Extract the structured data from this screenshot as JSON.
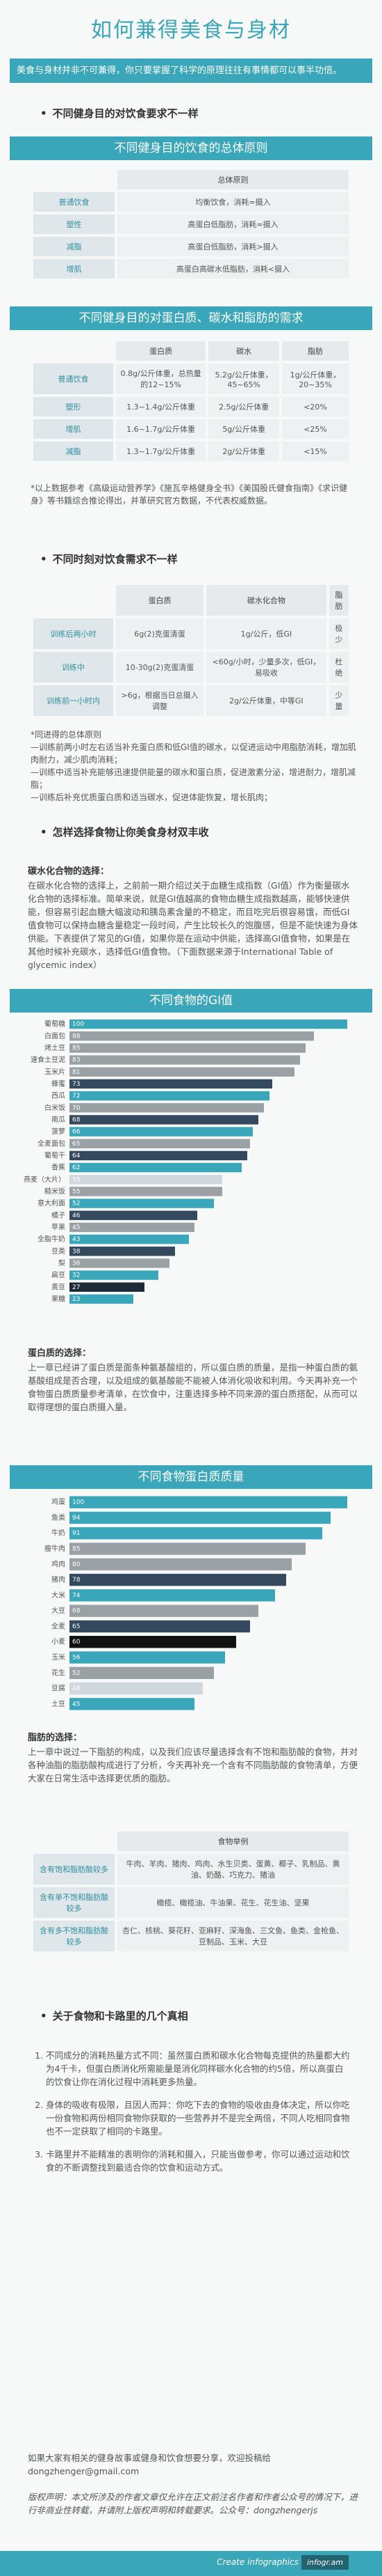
{
  "header": {
    "title": "如何兼得美食与身材",
    "intro": "美食与身材并非不可兼得，你只要掌握了科学的原理往往有事情都可以事半功倍。"
  },
  "headings": [
    "不同健身目的对饮食要求不一样",
    "不同时刻对饮食需求不一样",
    "怎样选择食物让你美食身材双丰收",
    "关于食物和卡路里的几个真相"
  ],
  "banners": [
    "不同健身目的饮食的总体原则",
    "不同健身目的对蛋白质、碳水和脂肪的需求"
  ],
  "tables": {
    "t1": {
      "header": [
        "总体原则"
      ],
      "rows": [
        [
          "普通饮食",
          "均衡饮食，消耗=摄入"
        ],
        [
          "塑性",
          "高蛋白低脂肪，消耗≈摄入"
        ],
        [
          "减脂",
          "高蛋白低脂肪，消耗>摄入"
        ],
        [
          "增肌",
          "高蛋白高碳水低脂肪，消耗<摄入"
        ]
      ]
    },
    "t2": {
      "header": [
        "蛋白质",
        "碳水",
        "脂肪"
      ],
      "rows": [
        [
          "普通饮食",
          "0.8g/公斤体重，总热量的12~15%",
          "5.2g/公斤体重，45~65%",
          "1g/公斤体重，20~35%"
        ],
        [
          "塑形",
          "1.3~1.4g/公斤体重",
          "2.5g/公斤体重",
          "<20%"
        ],
        [
          "增肌",
          "1.6~1.7g/公斤体重",
          "5g/公斤体重",
          "<25%"
        ],
        [
          "减脂",
          "1.3~1.7g/公斤体重",
          "2g/公斤体重",
          "<15%"
        ]
      ]
    },
    "t3": {
      "header": [
        "蛋白质",
        "碳水化合物",
        "脂肪"
      ],
      "rows": [
        [
          "训练后两小时",
          "6g(2)克蛋清蛋",
          "1g/公斤，低GI",
          "极少"
        ],
        [
          "训练中",
          "10-30g(2)克蛋清蛋",
          "<60g/小时，少量多次，低GI，易吸收",
          "杜绝"
        ],
        [
          "训练前一小时内",
          ">6g，根据当日总摄入调整",
          "2g/公斤体重，中等GI",
          "少量"
        ]
      ]
    },
    "t4": {
      "header": [
        "食物举例"
      ],
      "rows": [
        [
          "含有饱和脂肪酸较多",
          "牛肉、羊肉、猪肉、鸡肉、水生贝类、蛋黄、椰子、乳制品、黄油、奶酪、巧克力、猪油"
        ],
        [
          "含有单不饱和脂肪酸较多",
          "橄榄、橄榄油、牛油果、花生、花生油、坚果"
        ],
        [
          "含有多不饱和脂肪酸较多",
          "杏仁、核桃、葵花籽、亚麻籽、深海鱼、三文鱼、鱼类、金枪鱼、豆制品、玉米、大豆"
        ]
      ]
    }
  },
  "notes": {
    "n1": "*以上数据参考《高级运动营养学》《施瓦辛格健身全书》《美国股氏健食指南》《求识健身》等书籍综合推论得出，并革研究官方数据，不代表权威数据。",
    "n2": [
      "*同进得的总体原则",
      "—训练前两小时左右适当补充蛋白质和低GI值的碳水，以促进运动中用脂肪消耗，增加肌肉耐力，减少肌肉消耗；",
      "—训练中适当补充能够迅速提供能量的碳水和蛋白质，促进激素分泌，增进耐力，增肌减脂；",
      "—训练后补充优质蛋白质和适当碳水，促进体能恢复，增长肌肉；"
    ]
  },
  "paragraphs": {
    "carb": {
      "heading": "碳水化合物的选择：",
      "text": "在碳水化合物的选择上，之前前一期介绍过关于血糖生成指数（GI值）作为衡量碳水化合物的选择标准。简单来说，就是GI值越高的食物血糖生成指数越高，能够快速供能，但容易引起血糖大幅波动和胰岛素含量的不稳定，而且吃完后很容易饿，而低GI值食物可以保持血糖含量稳定一段时间，产生比较长久的饱腹感，但是不能快速为身体供能。下表提供了常见的GI值，如果你是在运动中供能，选择高GI值食物，如果是在其他时候补充碳水，选择低GI值食物。（下面数据来源于International Table of glycemic index）"
    },
    "protein": {
      "heading": "蛋白质的选择：",
      "text": "上一章已经讲了蛋白质是面条种氨基酸组的，所以蛋白质的质量，是指一种蛋白质的氨基酸组成是否合理，以及组成的氨基酸能不能被人体消化吸收和利用。今天再补充一个食物蛋白质质量参考清单，在饮食中，注重选择多种不同来源的蛋白质搭配，从而可以取得理想的蛋白质摄入量。"
    },
    "fat": {
      "heading": "脂肪的选择：",
      "text": "上一章中说过一下脂肪的构成，以及我们应该尽量选择含有不饱和脂肪酸的食物，并对各种油脂的脂肪酸构成进行了分析，今天再补充一个含有不同脂肪酸的食物清单，方便大家在日常生活中选择更优质的脂肪。"
    }
  },
  "truths": [
    "不同成分的消耗热量方式不同：虽然蛋白质和碳水化合物每克提供的热量都大约为4千卡，但蛋白质消化所需能量是消化同样碳水化合物的约5倍，所以高蛋白的饮食让你在消化过程中消耗更多热量。",
    "身体的吸收有极限，且因人而异：你吃下去的食物的吸收由身体决定，所以你吃一份食物和两份相同食物你获取的一些营养并不是完全两倍，不同人吃相同食物也不一定获取了相同的卡路里。",
    "卡路里并不能精准的表明你的消耗和摄入，只能当做参考，你可以通过运动和饮食的不断调整找到最适合你的饮食和运动方式。"
  ],
  "contact": {
    "text": "如果大家有相关的健身故事或健身和饮食想要分享，欢迎投稿给",
    "email": "dongzhenger@gmail.com"
  },
  "copyright": "版权声明：本文所涉及的作者文章仅允许在正文前注名作者和作者公众号的情况下，进行非商业性转载，并请附上版权声明和转载要求。公众号：dongzhengerjs",
  "footer": {
    "text": "Create infographics",
    "badge": "infogr.am"
  },
  "chart_data": [
    {
      "type": "bar",
      "orientation": "horizontal",
      "title": "不同食物的GI值",
      "categories": [
        "葡萄糖",
        "白面包",
        "烤土豆",
        "速食土豆泥",
        "玉米片",
        "蜂蜜",
        "西瓜",
        "白米饭",
        "南瓜",
        "菠萝",
        "全麦面包",
        "葡萄干",
        "香蕉",
        "燕麦（大片）",
        "糙米饭",
        "意大利面",
        "橘子",
        "苹果",
        "全脂牛奶",
        "豆类",
        "梨",
        "扁豆",
        "黄豆",
        "果糖"
      ],
      "values": [
        100,
        88,
        85,
        83,
        81,
        73,
        72,
        70,
        68,
        66,
        65,
        64,
        62,
        55,
        55,
        52,
        46,
        45,
        43,
        38,
        36,
        32,
        27,
        23
      ],
      "colors": [
        "#3aa6b9",
        "#9aa1a5",
        "#9aa1a5",
        "#9aa1a5",
        "#9aa1a5",
        "#34495e",
        "#3aa6b9",
        "#9aa1a5",
        "#34495e",
        "#3aa6b9",
        "#9aa1a5",
        "#34495e",
        "#3aa6b9",
        "#cfd8dc",
        "#9aa1a5",
        "#3aa6b9",
        "#34495e",
        "#9aa1a5",
        "#3aa6b9",
        "#34495e",
        "#9aa1a5",
        "#3aa6b9",
        "#1d2b36",
        "#3aa6b9"
      ],
      "xlim": [
        0,
        105
      ]
    },
    {
      "type": "bar",
      "orientation": "horizontal",
      "title": "不同食物蛋白质质量",
      "categories": [
        "鸡蛋",
        "鱼类",
        "牛奶",
        "瘦牛肉",
        "鸡肉",
        "猪肉",
        "大米",
        "大豆",
        "全麦",
        "小麦",
        "玉米",
        "花生",
        "豆腐",
        "土豆"
      ],
      "values": [
        100,
        94,
        91,
        85,
        80,
        78,
        74,
        68,
        65,
        60,
        56,
        52,
        48,
        45
      ],
      "colors": [
        "#3aa6b9",
        "#3aa6b9",
        "#3aa6b9",
        "#9aa1a5",
        "#9aa1a5",
        "#34495e",
        "#3aa6b9",
        "#9aa1a5",
        "#34495e",
        "#111111",
        "#3aa6b9",
        "#9aa1a5",
        "#cfd8dc",
        "#3aa6b9"
      ],
      "xlim": [
        0,
        105
      ]
    }
  ]
}
